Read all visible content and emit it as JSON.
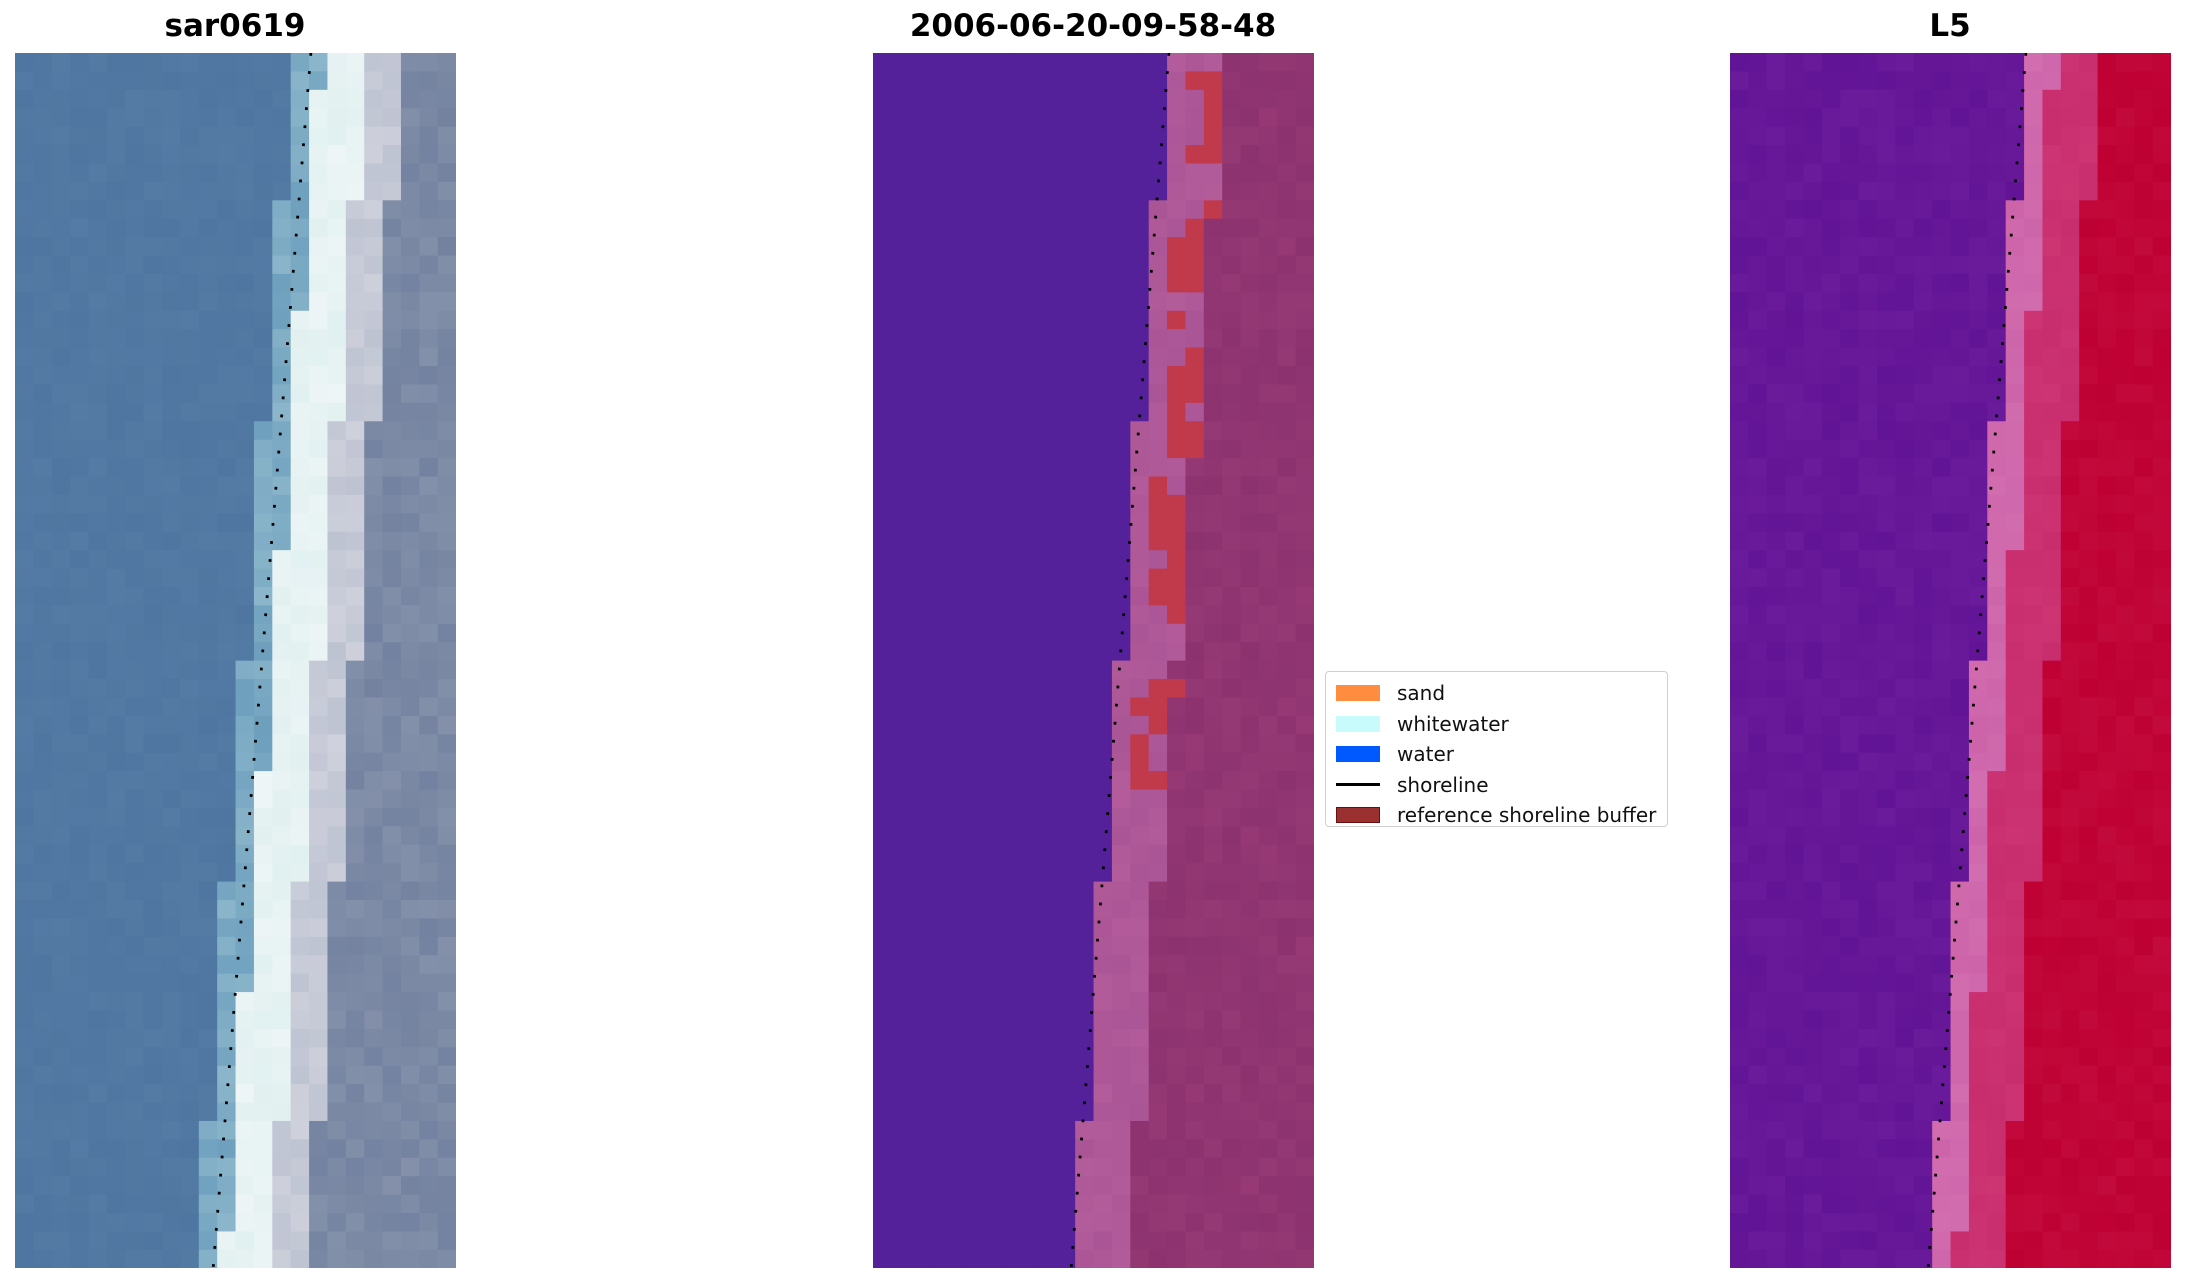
{
  "panels": [
    {
      "title": "sar0619",
      "kind": "rgb"
    },
    {
      "title": "2006-06-20-09-58-48",
      "kind": "classified"
    },
    {
      "title": "L5",
      "kind": "index"
    }
  ],
  "legend": {
    "items": [
      {
        "label": "sand",
        "color": "#ff8c3f",
        "type": "patch"
      },
      {
        "label": "whitewater",
        "color": "#c8fbfb",
        "type": "patch"
      },
      {
        "label": "water",
        "color": "#0059ff",
        "type": "patch"
      },
      {
        "label": "shoreline",
        "color": "#000000",
        "type": "line"
      },
      {
        "label": "reference shoreline buffer",
        "color": "#9a3030",
        "type": "patch"
      }
    ]
  }
}
